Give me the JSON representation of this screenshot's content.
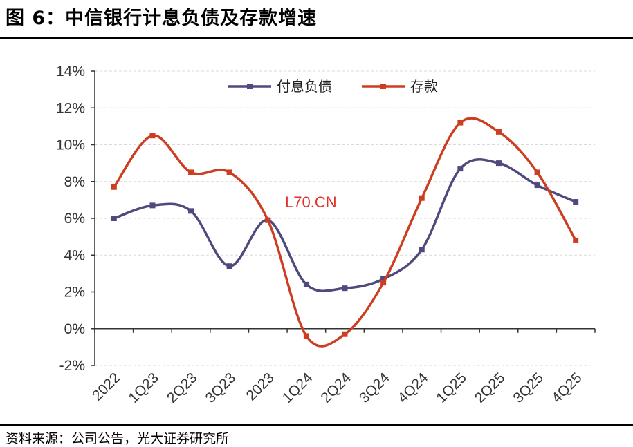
{
  "figure": {
    "title": "图 6：中信银行计息负债及存款增速",
    "source": "资料来源：公司公告，光大证券研究所",
    "watermark": "L70.CN"
  },
  "chart_data": {
    "type": "line",
    "categories": [
      "2022",
      "1Q23",
      "2Q23",
      "3Q23",
      "2023",
      "1Q24",
      "2Q24",
      "3Q24",
      "4Q24",
      "1Q25",
      "2Q25",
      "3Q25",
      "4Q25"
    ],
    "series": [
      {
        "name": "付息负债",
        "color": "#4e4a7d",
        "values": [
          6.0,
          6.7,
          6.4,
          3.4,
          5.9,
          2.4,
          2.2,
          2.7,
          4.3,
          8.7,
          9.0,
          7.8,
          6.9
        ]
      },
      {
        "name": "存款",
        "color": "#cd3d21",
        "values": [
          7.7,
          10.5,
          8.5,
          8.5,
          5.9,
          -0.4,
          -0.3,
          2.5,
          7.1,
          11.2,
          10.7,
          8.5,
          4.8
        ]
      }
    ],
    "ylim": [
      -2,
      14
    ],
    "yticks": [
      "-2%",
      "0%",
      "2%",
      "4%",
      "6%",
      "8%",
      "10%",
      "12%",
      "14%"
    ],
    "ytick_values": [
      -2,
      0,
      2,
      4,
      6,
      8,
      10,
      12,
      14
    ],
    "grid": true,
    "legend": "top-center",
    "smooth": true
  }
}
